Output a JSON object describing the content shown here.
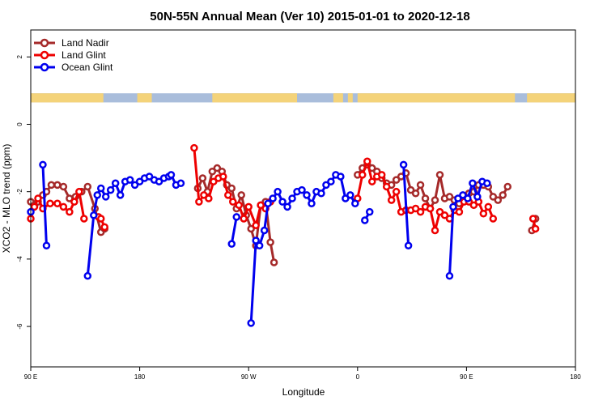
{
  "chart_data": {
    "type": "line",
    "title": "50N-55N Annual Mean (Ver 10)   2015-01-01 to 2020-12-18",
    "xlabel": "Longitude",
    "ylabel": "XCO2 - MLO trend (ppm)",
    "x_ticks": [
      {
        "value": 90,
        "label": "90 E"
      },
      {
        "value": 180,
        "label": "180"
      },
      {
        "value": 270,
        "label": "90 W"
      },
      {
        "value": 360,
        "label": "0"
      },
      {
        "value": 450,
        "label": "90 E"
      },
      {
        "value": 540,
        "label": "180"
      }
    ],
    "y_ticks": [
      {
        "value": 2,
        "label": "2"
      },
      {
        "value": 0,
        "label": "0"
      },
      {
        "value": -2,
        "label": "-2"
      },
      {
        "value": -4,
        "label": "-4"
      },
      {
        "value": -6,
        "label": "-6"
      }
    ],
    "xlim": [
      90,
      540
    ],
    "ylim": [
      -7.2,
      2.8
    ],
    "grid": false,
    "legend_position": "top-left",
    "land_ocean_strip": {
      "y_range": [
        0.65,
        0.92
      ],
      "ocean_color": "#a9bddb",
      "land_color": "#f4d37a",
      "land_segments": [
        [
          90,
          150
        ],
        [
          178,
          190
        ],
        [
          240,
          310
        ],
        [
          340,
          348
        ],
        [
          352,
          356
        ],
        [
          360,
          490
        ],
        [
          500,
          540
        ]
      ]
    },
    "series": [
      {
        "name": "Land Nadir",
        "color": "#a52a2a",
        "points": [
          [
            90,
            -2.3
          ],
          [
            93,
            -2.4
          ],
          [
            96,
            -2.3
          ],
          [
            100,
            -2.1
          ],
          [
            103,
            -2.0
          ],
          [
            107,
            -1.8
          ],
          [
            112,
            -1.8
          ],
          [
            117,
            -1.85
          ],
          [
            122,
            -2.2
          ],
          [
            127,
            -2.15
          ],
          [
            132,
            -2.0
          ],
          [
            137,
            -1.85
          ],
          [
            143,
            -2.5
          ],
          [
            148,
            -3.2
          ],
          [
            151,
            -3.1
          ],
          [
            228,
            -1.9
          ],
          [
            232,
            -1.6
          ],
          [
            236,
            -2.0
          ],
          [
            240,
            -1.4
          ],
          [
            244,
            -1.3
          ],
          [
            248,
            -1.4
          ],
          [
            252,
            -1.8
          ],
          [
            256,
            -1.9
          ],
          [
            260,
            -2.5
          ],
          [
            264,
            -2.1
          ],
          [
            268,
            -2.7
          ],
          [
            272,
            -3.1
          ],
          [
            276,
            -3.6
          ],
          [
            280,
            -2.4
          ],
          [
            284,
            -2.3
          ],
          [
            288,
            -3.5
          ],
          [
            291,
            -4.1
          ],
          [
            360,
            -1.5
          ],
          [
            364,
            -1.3
          ],
          [
            368,
            -1.2
          ],
          [
            372,
            -1.3
          ],
          [
            376,
            -1.4
          ],
          [
            380,
            -1.6
          ],
          [
            384,
            -1.75
          ],
          [
            388,
            -1.8
          ],
          [
            392,
            -1.65
          ],
          [
            396,
            -1.55
          ],
          [
            400,
            -1.45
          ],
          [
            404,
            -1.95
          ],
          [
            408,
            -2.05
          ],
          [
            412,
            -1.8
          ],
          [
            416,
            -2.2
          ],
          [
            420,
            -2.5
          ],
          [
            424,
            -2.25
          ],
          [
            428,
            -1.5
          ],
          [
            432,
            -2.2
          ],
          [
            436,
            -2.15
          ],
          [
            440,
            -2.25
          ],
          [
            444,
            -2.35
          ],
          [
            448,
            -2.2
          ],
          [
            452,
            -2.05
          ],
          [
            456,
            -2.0
          ],
          [
            460,
            -1.8
          ],
          [
            464,
            -1.8
          ],
          [
            468,
            -1.85
          ],
          [
            472,
            -2.15
          ],
          [
            476,
            -2.25
          ],
          [
            480,
            -2.1
          ],
          [
            484,
            -1.85
          ],
          [
            504,
            -3.15
          ],
          [
            507,
            -2.8
          ]
        ]
      },
      {
        "name": "Land Glint",
        "color": "#ee0000",
        "points": [
          [
            90,
            -2.8
          ],
          [
            93,
            -2.45
          ],
          [
            96,
            -2.2
          ],
          [
            100,
            -2.5
          ],
          [
            106,
            -2.35
          ],
          [
            112,
            -2.35
          ],
          [
            117,
            -2.45
          ],
          [
            122,
            -2.6
          ],
          [
            126,
            -2.3
          ],
          [
            130,
            -2.0
          ],
          [
            134,
            -2.8
          ],
          [
            146,
            -2.75
          ],
          [
            148,
            -2.8
          ],
          [
            151,
            -3.05
          ],
          [
            225,
            -0.7
          ],
          [
            229,
            -2.3
          ],
          [
            233,
            -2.1
          ],
          [
            237,
            -2.2
          ],
          [
            241,
            -1.7
          ],
          [
            245,
            -1.6
          ],
          [
            249,
            -1.55
          ],
          [
            253,
            -2.1
          ],
          [
            257,
            -2.3
          ],
          [
            262,
            -2.4
          ],
          [
            266,
            -2.8
          ],
          [
            270,
            -2.45
          ],
          [
            276,
            -3.0
          ],
          [
            280,
            -2.4
          ],
          [
            284,
            -2.5
          ],
          [
            288,
            -2.3
          ],
          [
            360,
            -2.2
          ],
          [
            364,
            -1.5
          ],
          [
            368,
            -1.1
          ],
          [
            372,
            -1.7
          ],
          [
            376,
            -1.55
          ],
          [
            380,
            -1.5
          ],
          [
            384,
            -1.85
          ],
          [
            388,
            -2.25
          ],
          [
            392,
            -2.0
          ],
          [
            396,
            -2.6
          ],
          [
            400,
            -2.55
          ],
          [
            404,
            -2.55
          ],
          [
            408,
            -2.5
          ],
          [
            412,
            -2.6
          ],
          [
            416,
            -2.45
          ],
          [
            420,
            -2.5
          ],
          [
            424,
            -3.15
          ],
          [
            428,
            -2.6
          ],
          [
            432,
            -2.7
          ],
          [
            436,
            -2.8
          ],
          [
            440,
            -2.55
          ],
          [
            444,
            -2.6
          ],
          [
            448,
            -2.3
          ],
          [
            452,
            -2.3
          ],
          [
            456,
            -2.4
          ],
          [
            460,
            -2.3
          ],
          [
            464,
            -2.65
          ],
          [
            468,
            -2.45
          ],
          [
            472,
            -2.8
          ],
          [
            505,
            -2.8
          ],
          [
            507,
            -3.1
          ]
        ]
      },
      {
        "name": "Ocean Glint",
        "color": "#0000ee",
        "points": [
          [
            90,
            -2.6
          ],
          [
            100,
            -1.2
          ],
          [
            103,
            -3.6
          ],
          [
            137,
            -4.5
          ],
          [
            142,
            -2.7
          ],
          [
            145,
            -2.1
          ],
          [
            148,
            -1.9
          ],
          [
            152,
            -2.15
          ],
          [
            156,
            -1.95
          ],
          [
            160,
            -1.75
          ],
          [
            164,
            -2.1
          ],
          [
            168,
            -1.7
          ],
          [
            172,
            -1.65
          ],
          [
            176,
            -1.8
          ],
          [
            180,
            -1.7
          ],
          [
            184,
            -1.6
          ],
          [
            188,
            -1.55
          ],
          [
            192,
            -1.65
          ],
          [
            196,
            -1.7
          ],
          [
            200,
            -1.6
          ],
          [
            204,
            -1.55
          ],
          [
            206,
            -1.5
          ],
          [
            210,
            -1.8
          ],
          [
            214,
            -1.75
          ],
          [
            256,
            -3.55
          ],
          [
            260,
            -2.75
          ],
          [
            272,
            -5.9
          ],
          [
            276,
            -3.45
          ],
          [
            279,
            -3.6
          ],
          [
            283,
            -3.15
          ],
          [
            286,
            -2.35
          ],
          [
            290,
            -2.2
          ],
          [
            294,
            -2.0
          ],
          [
            298,
            -2.3
          ],
          [
            302,
            -2.45
          ],
          [
            306,
            -2.2
          ],
          [
            310,
            -2.0
          ],
          [
            314,
            -1.95
          ],
          [
            318,
            -2.1
          ],
          [
            322,
            -2.35
          ],
          [
            326,
            -2.0
          ],
          [
            330,
            -2.05
          ],
          [
            334,
            -1.8
          ],
          [
            338,
            -1.7
          ],
          [
            342,
            -1.5
          ],
          [
            346,
            -1.55
          ],
          [
            350,
            -2.2
          ],
          [
            354,
            -2.1
          ],
          [
            358,
            -2.35
          ],
          [
            366,
            -2.85
          ],
          [
            370,
            -2.6
          ],
          [
            398,
            -1.2
          ],
          [
            402,
            -3.6
          ],
          [
            436,
            -4.5
          ],
          [
            439,
            -2.45
          ],
          [
            443,
            -2.2
          ],
          [
            447,
            -2.1
          ],
          [
            451,
            -2.2
          ],
          [
            455,
            -1.75
          ],
          [
            459,
            -2.15
          ],
          [
            463,
            -1.7
          ],
          [
            467,
            -1.75
          ]
        ]
      }
    ]
  }
}
